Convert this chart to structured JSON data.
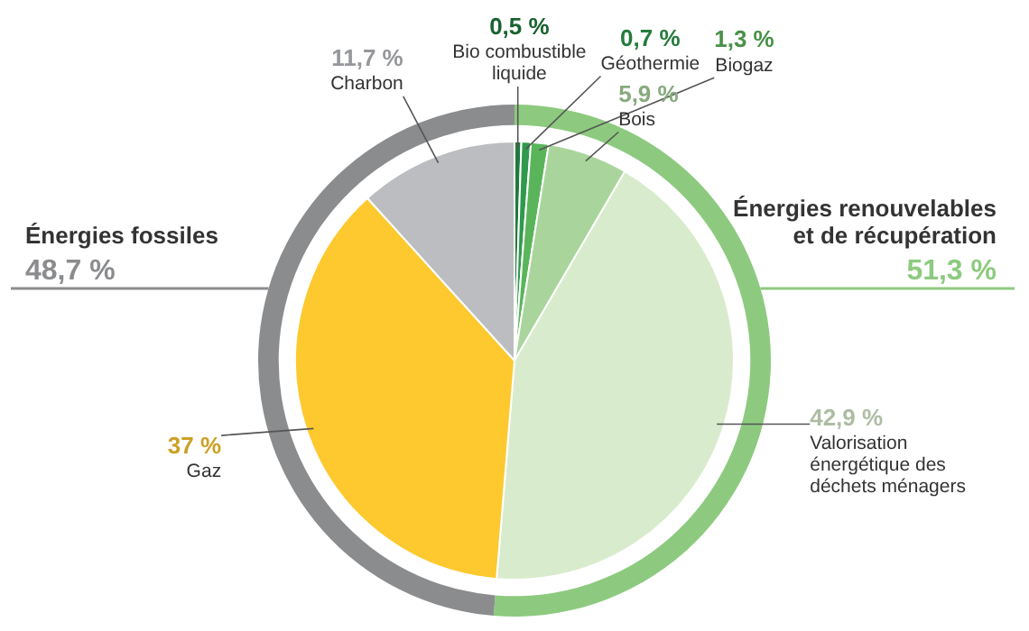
{
  "chart_data": [
    {
      "type": "pie",
      "legend": false,
      "categories": [
        "Bio combustible liquide",
        "Géothermie",
        "Biogaz",
        "Bois",
        "Valorisation énergétique des déchets ménagers",
        "Gaz",
        "Charbon"
      ],
      "values": [
        0.5,
        0.7,
        1.3,
        5.9,
        42.9,
        37,
        11.7
      ],
      "value_labels": [
        "0,5 %",
        "0,7 %",
        "1,3 %",
        "5,9 %",
        "42,9 %",
        "37 %",
        "11,7 %"
      ],
      "colors": [
        "#1f7a3c",
        "#2f9a4c",
        "#5ab55a",
        "#a9d59c",
        "#d9ebcd",
        "#fec92e",
        "#bcbdc0"
      ]
    },
    {
      "type": "donut",
      "legend": false,
      "categories": [
        "Énergies renouvelables et de récupération",
        "Énergies fossiles"
      ],
      "values": [
        51.3,
        48.7
      ],
      "value_labels": [
        "51,3 %",
        "48,7 %"
      ],
      "colors": [
        "#8dca7f",
        "#8b8c8e"
      ]
    }
  ]
}
